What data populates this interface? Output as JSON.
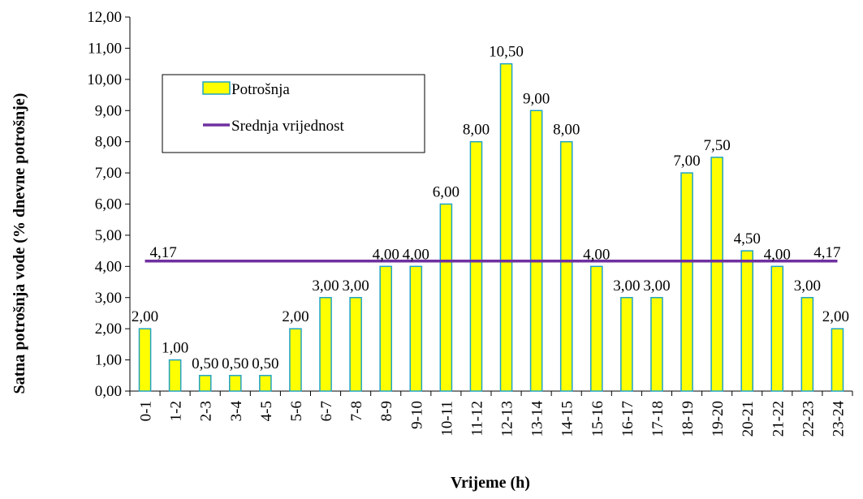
{
  "chart_data": {
    "type": "bar",
    "xlabel": "Vrijeme (h)",
    "ylabel": "Satna potrošnja vode (% dnevne potrošnje)",
    "ylim": [
      0,
      12
    ],
    "ytick_step": 1,
    "yticks": [
      "0,00",
      "1,00",
      "2,00",
      "3,00",
      "4,00",
      "5,00",
      "6,00",
      "7,00",
      "8,00",
      "9,00",
      "10,00",
      "11,00",
      "12,00"
    ],
    "grid": false,
    "legend_position": "top-left",
    "categories": [
      "0-1",
      "1-2",
      "2-3",
      "3-4",
      "4-5",
      "5-6",
      "6-7",
      "7-8",
      "8-9",
      "9-10",
      "10-11",
      "11-12",
      "12-13",
      "13-14",
      "14-15",
      "15-16",
      "16-17",
      "17-18",
      "18-19",
      "19-20",
      "20-21",
      "21-22",
      "22-23",
      "23-24"
    ],
    "series": [
      {
        "name": "Potrošnja",
        "type": "bar",
        "color": "#FFFF00",
        "edge_color": "#1FA3C6",
        "values": [
          2.0,
          1.0,
          0.5,
          0.5,
          0.5,
          2.0,
          3.0,
          3.0,
          4.0,
          4.0,
          6.0,
          8.0,
          10.5,
          9.0,
          8.0,
          4.0,
          3.0,
          3.0,
          7.0,
          7.5,
          4.5,
          4.0,
          3.0,
          2.0
        ],
        "labels": [
          "2,00",
          "1,00",
          "0,50",
          "0,50",
          "0,50",
          "2,00",
          "3,00",
          "3,00",
          "4,00",
          "4,00",
          "6,00",
          "8,00",
          "10,50",
          "9,00",
          "8,00",
          "4,00",
          "3,00",
          "3,00",
          "7,00",
          "7,50",
          "4,50",
          "4,00",
          "3,00",
          "2,00"
        ]
      },
      {
        "name": "Srednja vrijednost",
        "type": "line",
        "color": "#7030A0",
        "value": 4.17,
        "start_label": "4,17",
        "end_label": "4,17"
      }
    ]
  }
}
